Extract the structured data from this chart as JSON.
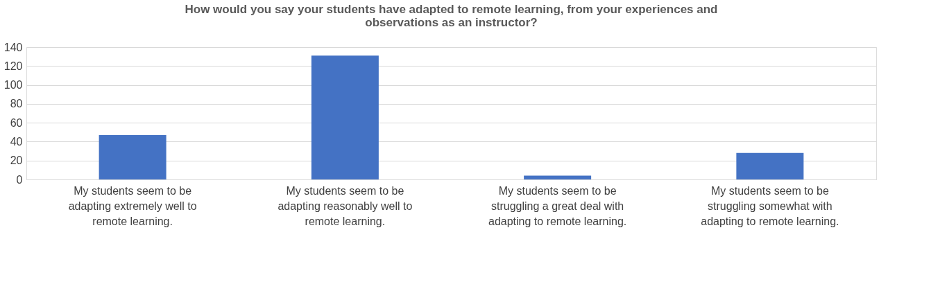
{
  "chart_data": {
    "type": "bar",
    "title": "How would you say your students have adapted to remote learning, from your experiences and observations as an instructor?",
    "categories": [
      "My students seem to be adapting extremely well to remote learning.",
      "My students seem to be adapting reasonably well to remote learning.",
      "My students seem to be struggling a great deal with adapting to remote learning.",
      "My students seem to be struggling somewhat with adapting to remote learning."
    ],
    "values": [
      47,
      131,
      4,
      28
    ],
    "color": "#4472c4",
    "ylim": [
      0,
      140
    ],
    "yticks": [
      0,
      20,
      40,
      60,
      80,
      100,
      120,
      140
    ],
    "grid": "y"
  }
}
